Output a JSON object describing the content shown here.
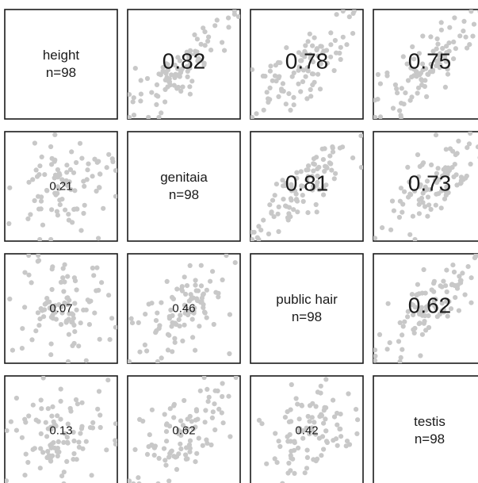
{
  "chart_data": {
    "type": "scatter",
    "variables": [
      "height",
      "genitaia",
      "public hair",
      "testis"
    ],
    "n": 98,
    "diagonal_labels": [
      {
        "name": "height",
        "n_text": "n=98"
      },
      {
        "name": "genitaia",
        "n_text": "n=98"
      },
      {
        "name": "public hair",
        "n_text": "n=98"
      },
      {
        "name": "testis",
        "n_text": "n=98"
      }
    ],
    "correlations": [
      {
        "row": 0,
        "col": 1,
        "r": 0.82,
        "label": "0.82"
      },
      {
        "row": 0,
        "col": 2,
        "r": 0.78,
        "label": "0.78"
      },
      {
        "row": 0,
        "col": 3,
        "r": 0.75,
        "label": "0.75"
      },
      {
        "row": 1,
        "col": 0,
        "r": 0.21,
        "label": "0.21"
      },
      {
        "row": 1,
        "col": 2,
        "r": 0.81,
        "label": "0.81"
      },
      {
        "row": 1,
        "col": 3,
        "r": 0.73,
        "label": "0.73"
      },
      {
        "row": 2,
        "col": 0,
        "r": 0.07,
        "label": "0.07"
      },
      {
        "row": 2,
        "col": 1,
        "r": 0.46,
        "label": "0.46"
      },
      {
        "row": 2,
        "col": 3,
        "r": 0.62,
        "label": "0.62"
      },
      {
        "row": 3,
        "col": 0,
        "r": 0.13,
        "label": "0.13"
      },
      {
        "row": 3,
        "col": 1,
        "r": 0.62,
        "label": "0.62"
      },
      {
        "row": 3,
        "col": 2,
        "r": 0.42,
        "label": "0.42"
      }
    ],
    "upper_label_style": "large",
    "lower_label_style": "small",
    "grid": false,
    "point_color": "#c8c8c8",
    "frame_color": "#1a1a1a"
  }
}
